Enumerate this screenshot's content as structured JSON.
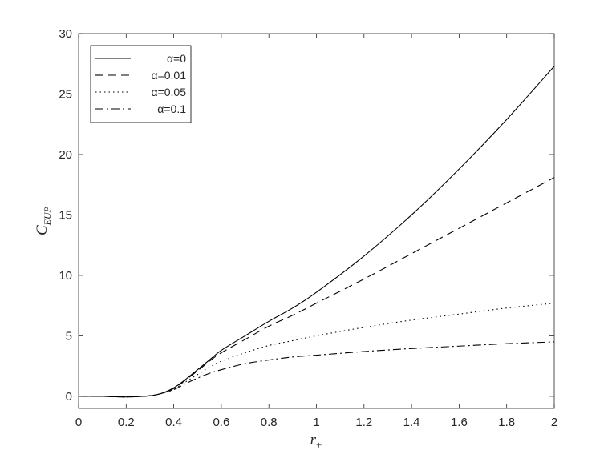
{
  "chart_data": {
    "type": "line",
    "xlabel": "r",
    "xlabel_sub": "+",
    "ylabel": "C",
    "ylabel_sub": "EUP",
    "xlim": [
      0,
      2
    ],
    "ylim": [
      -1,
      30
    ],
    "xticks": [
      "0",
      "0.2",
      "0.4",
      "0.6",
      "0.8",
      "1",
      "1.2",
      "1.4",
      "1.6",
      "1.8",
      "2"
    ],
    "yticks": [
      "0",
      "5",
      "10",
      "15",
      "20",
      "25",
      "30"
    ],
    "grid": false,
    "legend_position": "top-left",
    "line_color": "#000000",
    "x": [
      0,
      0.1,
      0.2,
      0.3,
      0.35,
      0.4,
      0.45,
      0.5,
      0.55,
      0.6,
      0.7,
      0.8,
      0.9,
      1.0,
      1.2,
      1.4,
      1.6,
      1.8,
      2.0
    ],
    "series": [
      {
        "name": "α=0",
        "dash": "solid",
        "values": [
          0,
          0,
          -0.05,
          0.05,
          0.25,
          0.7,
          1.4,
          2.2,
          3.0,
          3.8,
          5.0,
          6.2,
          7.3,
          8.6,
          11.6,
          15.0,
          18.8,
          22.9,
          27.3
        ]
      },
      {
        "name": "α=0.01",
        "dash": "dash",
        "values": [
          0,
          0,
          -0.05,
          0.05,
          0.25,
          0.65,
          1.35,
          2.1,
          2.9,
          3.6,
          4.7,
          5.8,
          6.7,
          7.7,
          9.7,
          11.8,
          13.9,
          16.0,
          18.1
        ]
      },
      {
        "name": "α=0.05",
        "dash": "dot",
        "values": [
          0,
          0,
          -0.05,
          0.05,
          0.25,
          0.6,
          1.2,
          1.8,
          2.4,
          2.9,
          3.6,
          4.2,
          4.6,
          5.0,
          5.7,
          6.3,
          6.8,
          7.3,
          7.7
        ]
      },
      {
        "name": "α=0.1",
        "dash": "dashdot",
        "values": [
          0,
          0,
          -0.05,
          0.05,
          0.25,
          0.55,
          1.05,
          1.5,
          1.9,
          2.2,
          2.7,
          3.0,
          3.25,
          3.4,
          3.7,
          3.95,
          4.15,
          4.35,
          4.5
        ]
      }
    ]
  }
}
